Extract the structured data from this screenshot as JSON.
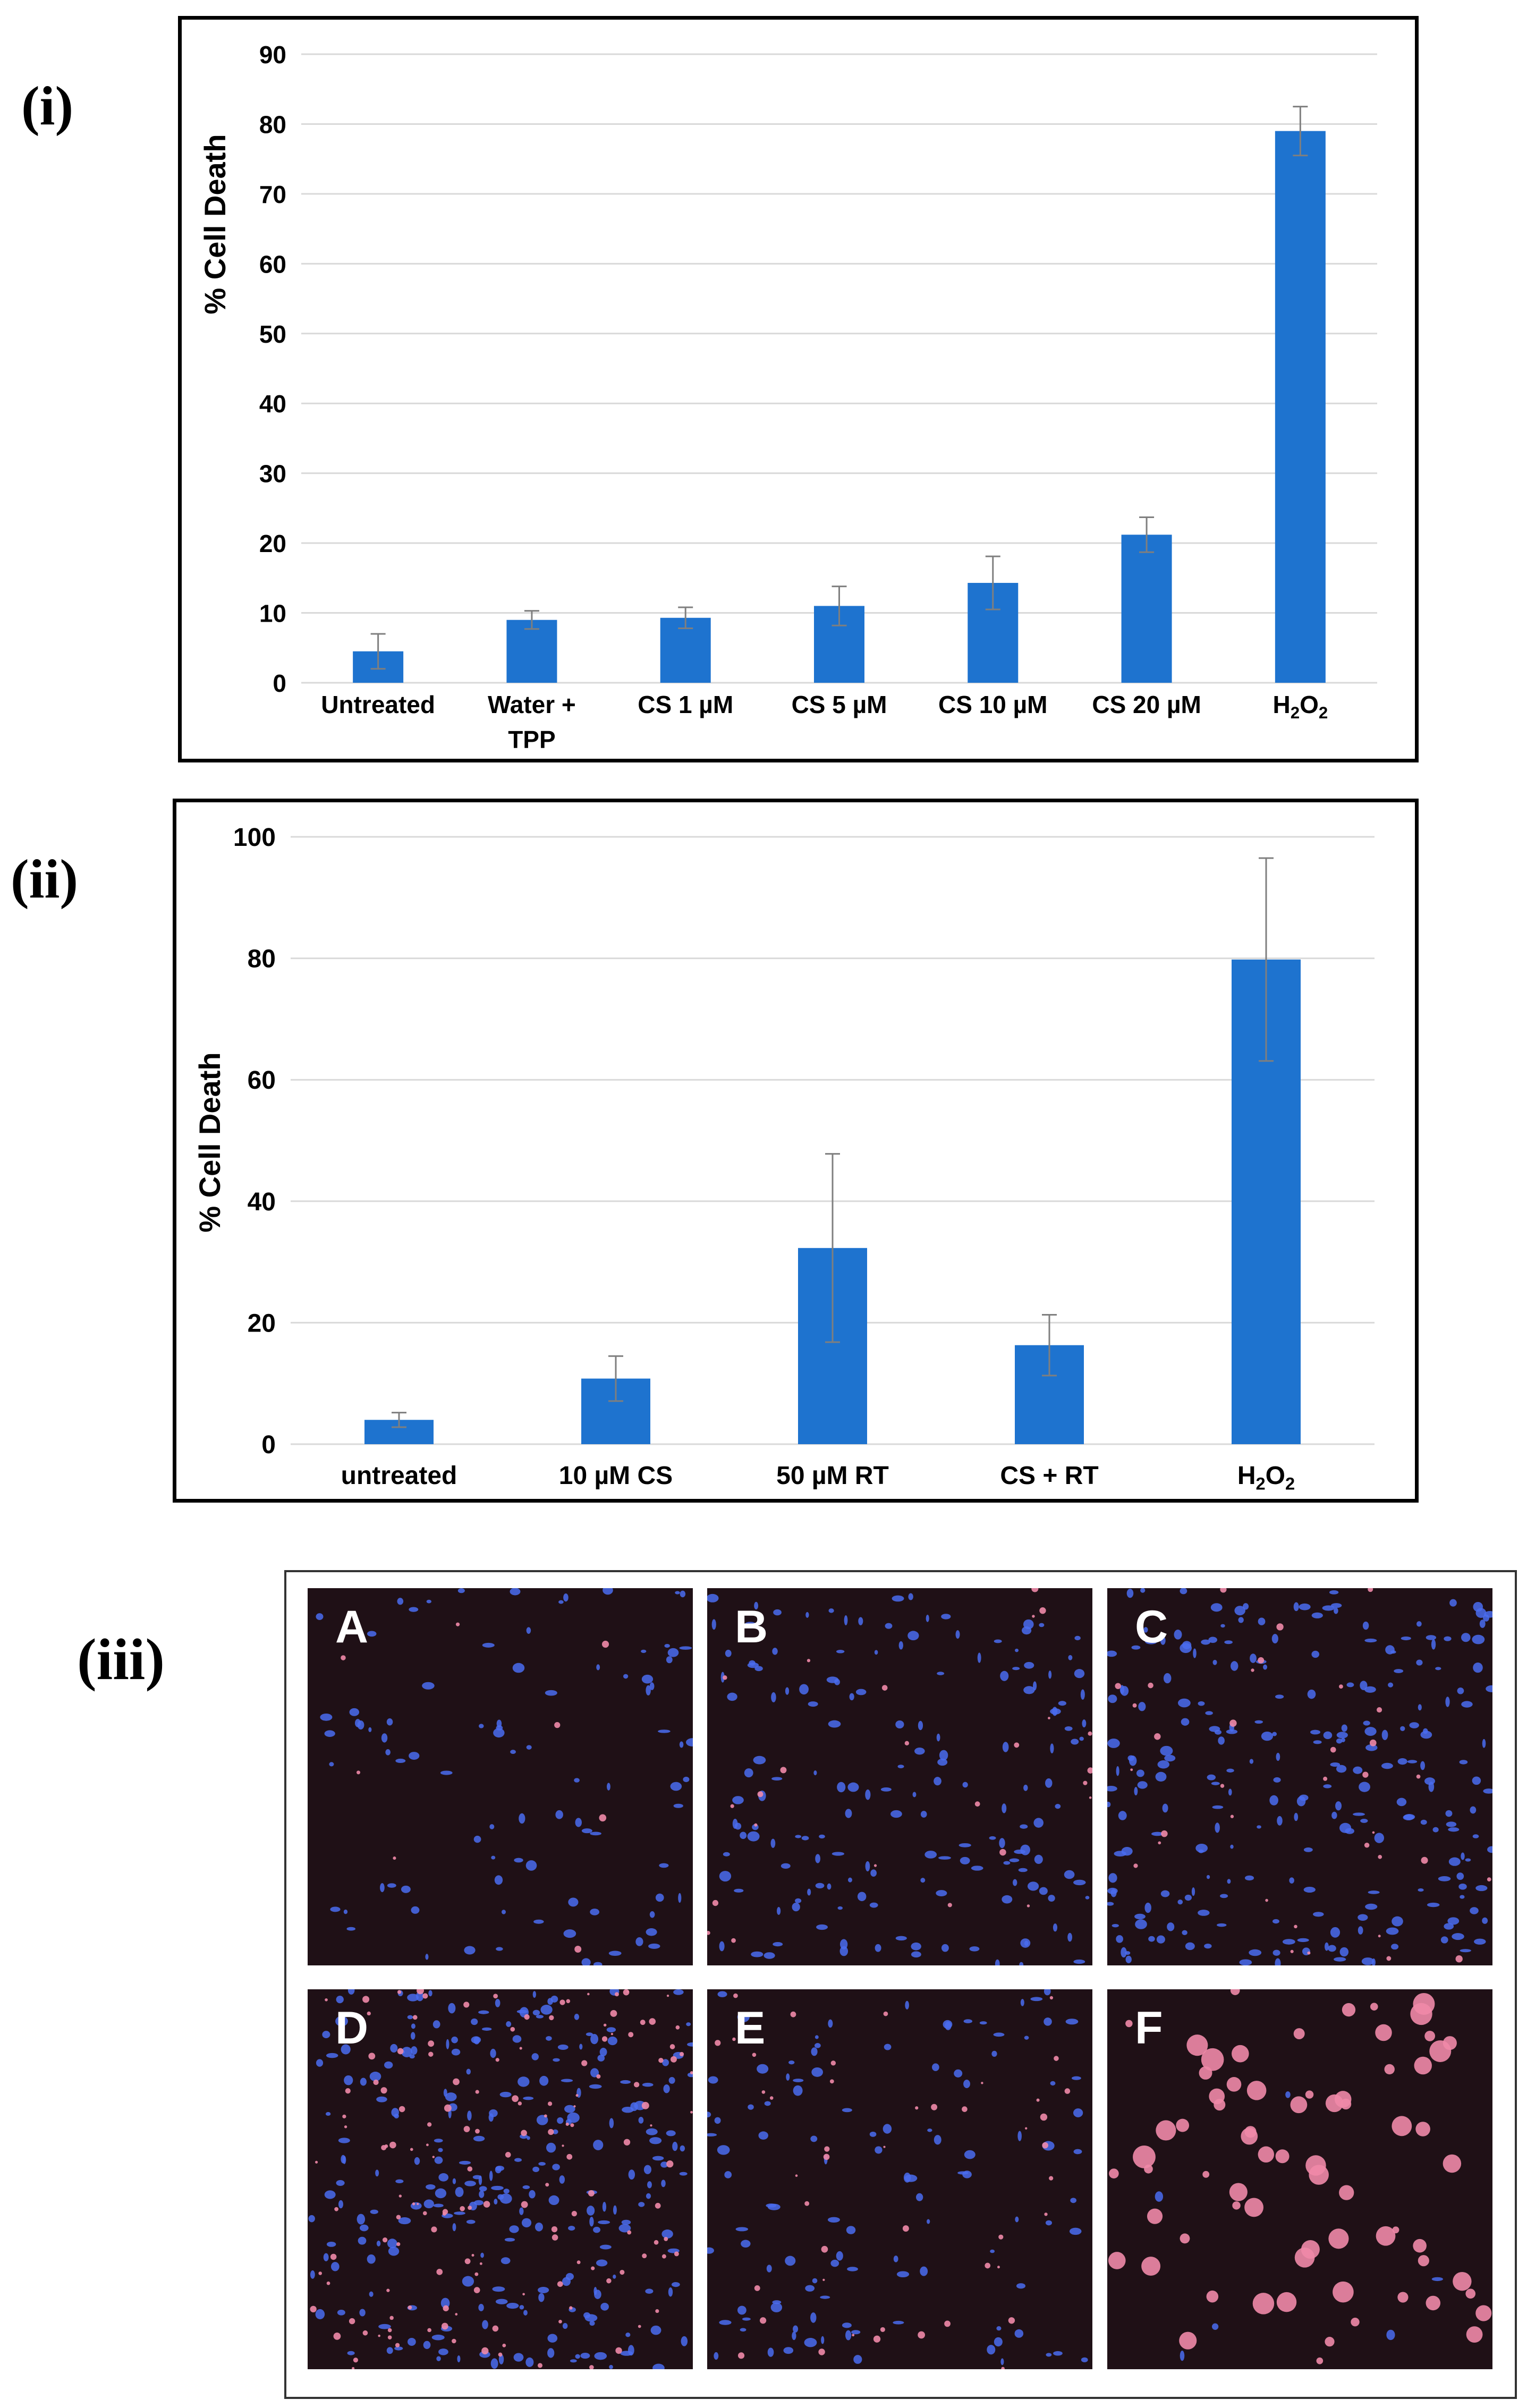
{
  "panels": {
    "i": "(i)",
    "ii": "(ii)",
    "iii": "(iii)"
  },
  "colors": {
    "bar": "#1e73cf",
    "grid": "#d9d9d9",
    "errorbar": "#7f7f7f",
    "tile_background": "#1f1016",
    "tile_blue": "#4a6cf0",
    "tile_pink": "#f08aa8"
  },
  "chart_data": [
    {
      "type": "bar",
      "title": "",
      "ylabel": "% Cell Death",
      "xlabel": "",
      "ylim": [
        0,
        90
      ],
      "yticks": [
        0,
        10,
        20,
        30,
        40,
        50,
        60,
        70,
        80,
        90
      ],
      "grid": true,
      "categories": [
        "Untreated",
        "Water + TPP",
        "CS 1 µM",
        "CS 5 µM",
        "CS 10 µM",
        "CS 20 µM",
        "H2O2"
      ],
      "category_lines": [
        [
          "Untreated"
        ],
        [
          "Water +",
          "TPP"
        ],
        [
          "CS 1 µM"
        ],
        [
          "CS 5 µM"
        ],
        [
          "CS 10 µM"
        ],
        [
          "CS 20 µM"
        ],
        [
          "H2O2"
        ]
      ],
      "values": [
        4.5,
        9,
        9.3,
        11,
        14.3,
        21.2,
        79
      ],
      "errors": [
        2.5,
        1.3,
        1.5,
        2.8,
        3.8,
        2.5,
        3.5
      ]
    },
    {
      "type": "bar",
      "title": "",
      "ylabel": "% Cell Death",
      "xlabel": "",
      "ylim": [
        0,
        100
      ],
      "yticks": [
        0,
        20,
        40,
        60,
        80,
        100
      ],
      "grid": true,
      "categories": [
        "untreated",
        "10 µM CS",
        "50 µM RT",
        "CS + RT",
        "H2O2"
      ],
      "category_lines": [
        [
          "untreated"
        ],
        [
          "10 µM CS"
        ],
        [
          "50 µM RT"
        ],
        [
          "CS + RT"
        ],
        [
          "H2O2"
        ]
      ],
      "values": [
        4,
        10.8,
        32.3,
        16.3,
        79.8
      ],
      "errors": [
        1.2,
        3.7,
        15.5,
        5,
        16.7
      ]
    }
  ],
  "micrographs": {
    "tiles": [
      {
        "label": "A",
        "blue_cells": 90,
        "pink_cells": 8
      },
      {
        "label": "B",
        "blue_cells": 160,
        "pink_cells": 25
      },
      {
        "label": "C",
        "blue_cells": 240,
        "pink_cells": 35
      },
      {
        "label": "D",
        "blue_cells": 260,
        "pink_cells": 150
      },
      {
        "label": "E",
        "blue_cells": 110,
        "pink_cells": 45
      },
      {
        "label": "F",
        "blue_cells": 6,
        "pink_cells": 70
      }
    ]
  }
}
